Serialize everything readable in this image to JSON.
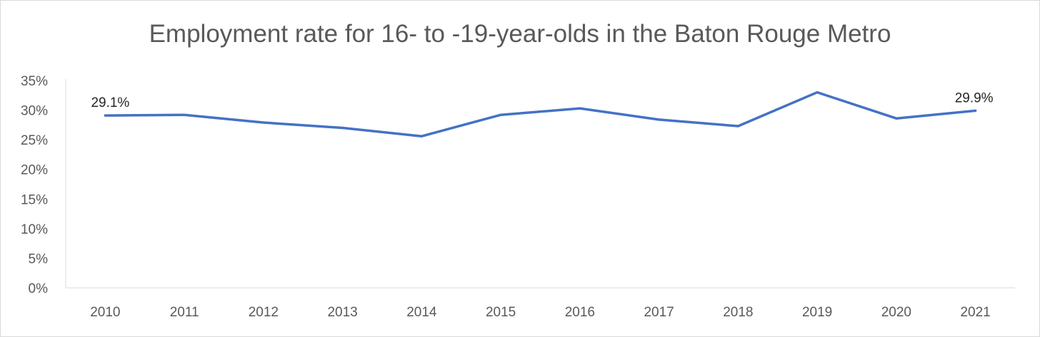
{
  "chart_data": {
    "type": "line",
    "title": "Employment rate for 16- to -19-year-olds in the Baton Rouge Metro",
    "xlabel": "",
    "ylabel": "",
    "categories": [
      "2010",
      "2011",
      "2012",
      "2013",
      "2014",
      "2015",
      "2016",
      "2017",
      "2018",
      "2019",
      "2020",
      "2021"
    ],
    "series": [
      {
        "values": [
          29.1,
          29.2,
          27.9,
          27.0,
          25.6,
          29.2,
          30.3,
          28.4,
          27.3,
          33.0,
          28.6,
          29.9
        ],
        "color": "#4472c4"
      }
    ],
    "ylim": [
      0,
      35
    ],
    "yticks": [
      0,
      5,
      10,
      15,
      20,
      25,
      30,
      35
    ],
    "ytick_labels": [
      "0%",
      "5%",
      "10%",
      "15%",
      "20%",
      "25%",
      "30%",
      "35%"
    ],
    "data_labels": [
      {
        "category": "2010",
        "text": "29.1%"
      },
      {
        "category": "2021",
        "text": "29.9%"
      }
    ],
    "grid": false,
    "legend": "none"
  }
}
